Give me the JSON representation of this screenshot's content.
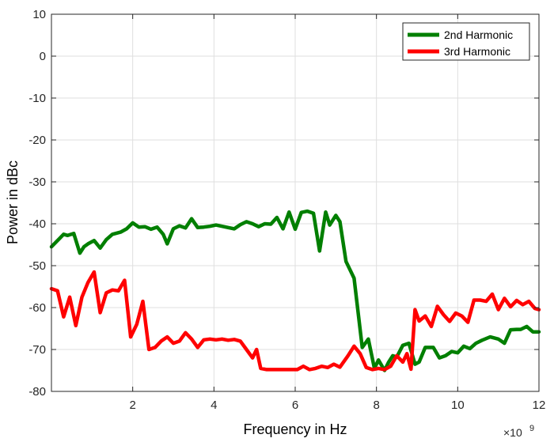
{
  "chart_data": {
    "type": "line",
    "xlabel": "Frequency in Hz",
    "ylabel": "Power in dBc",
    "x_exponent_label": "×10",
    "x_exponent_power": "9",
    "xlim": [
      0,
      12000000000
    ],
    "ylim": [
      -80,
      10
    ],
    "xticks": [
      2000000000,
      4000000000,
      6000000000,
      8000000000,
      10000000000,
      12000000000
    ],
    "xtick_labels": [
      "2",
      "4",
      "6",
      "8",
      "10",
      "12"
    ],
    "yticks": [
      10,
      0,
      -10,
      -20,
      -30,
      -40,
      -50,
      -60,
      -70,
      -80
    ],
    "ytick_labels": [
      "10",
      "0",
      "-10",
      "-20",
      "-30",
      "-40",
      "-50",
      "-60",
      "-70",
      "-80"
    ],
    "grid": true,
    "legend_position": "top-right",
    "series": [
      {
        "name": "2nd Harmonic",
        "color": "#007f00",
        "x": [
          0,
          200000000,
          300000000,
          400000000,
          550000000,
          700000000,
          800000000,
          900000000,
          1050000000,
          1200000000,
          1350000000,
          1500000000,
          1700000000,
          1850000000,
          2000000000,
          2150000000,
          2300000000,
          2450000000,
          2600000000,
          2750000000,
          2850000000,
          3000000000,
          3150000000,
          3300000000,
          3450000000,
          3600000000,
          3750000000,
          3900000000,
          4050000000,
          4200000000,
          4350000000,
          4500000000,
          4650000000,
          4800000000,
          4950000000,
          5100000000,
          5250000000,
          5400000000,
          5550000000,
          5700000000,
          5850000000,
          6000000000,
          6150000000,
          6300000000,
          6450000000,
          6600000000,
          6750000000,
          6850000000,
          7000000000,
          7100000000,
          7250000000,
          7450000000,
          7650000000,
          7800000000,
          7950000000,
          8050000000,
          8200000000,
          8300000000,
          8400000000,
          8500000000,
          8650000000,
          8800000000,
          8950000000,
          9050000000,
          9200000000,
          9400000000,
          9550000000,
          9700000000,
          9850000000,
          10000000000,
          10150000000,
          10300000000,
          10450000000,
          10600000000,
          10800000000,
          11000000000,
          11150000000,
          11300000000,
          11450000000,
          11550000000,
          11700000000,
          11850000000,
          12000000000
        ],
        "y": [
          -45.5,
          -43.5,
          -42.5,
          -42.8,
          -42.3,
          -47,
          -45.5,
          -44.8,
          -44,
          -45.8,
          -43.8,
          -42.5,
          -42,
          -41.2,
          -39.8,
          -40.8,
          -40.7,
          -41.3,
          -40.8,
          -42.5,
          -44.8,
          -41.2,
          -40.5,
          -41,
          -38.8,
          -40.9,
          -40.8,
          -40.6,
          -40.3,
          -40.6,
          -40.9,
          -41.2,
          -40.2,
          -39.5,
          -40,
          -40.7,
          -40,
          -40.1,
          -38.5,
          -41.2,
          -37.2,
          -41.3,
          -37.3,
          -37,
          -37.5,
          -46.5,
          -37.2,
          -40.3,
          -38,
          -39.5,
          -49,
          -53,
          -69.5,
          -67.5,
          -74.5,
          -72.5,
          -75,
          -73,
          -71.5,
          -71.8,
          -69,
          -68.5,
          -73.5,
          -73,
          -69.5,
          -69.5,
          -72,
          -71.5,
          -70.5,
          -70.8,
          -69.2,
          -69.8,
          -68.5,
          -67.8,
          -67,
          -67.5,
          -68.5,
          -65.3,
          -65.2,
          -65.2,
          -64.5,
          -65.8,
          -65.8
        ]
      },
      {
        "name": "3rd Harmonic",
        "color": "#ff0000",
        "x": [
          0,
          150000000,
          300000000,
          450000000,
          600000000,
          750000000,
          900000000,
          1050000000,
          1200000000,
          1350000000,
          1500000000,
          1650000000,
          1800000000,
          1950000000,
          2100000000,
          2250000000,
          2400000000,
          2550000000,
          2700000000,
          2850000000,
          3000000000,
          3150000000,
          3300000000,
          3450000000,
          3600000000,
          3750000000,
          3900000000,
          4050000000,
          4200000000,
          4350000000,
          4500000000,
          4650000000,
          4800000000,
          4950000000,
          5050000000,
          5150000000,
          5300000000,
          5450000000,
          5600000000,
          5750000000,
          5900000000,
          6050000000,
          6200000000,
          6350000000,
          6500000000,
          6650000000,
          6800000000,
          6950000000,
          7100000000,
          7300000000,
          7450000000,
          7600000000,
          7750000000,
          7900000000,
          8050000000,
          8200000000,
          8350000000,
          8500000000,
          8650000000,
          8750000000,
          8850000000,
          8950000000,
          9050000000,
          9200000000,
          9350000000,
          9500000000,
          9650000000,
          9800000000,
          9950000000,
          10100000000,
          10250000000,
          10400000000,
          10550000000,
          10700000000,
          10850000000,
          11000000000,
          11150000000,
          11300000000,
          11450000000,
          11600000000,
          11750000000,
          11900000000,
          12000000000
        ],
        "y": [
          -55.5,
          -56,
          -62.2,
          -57.5,
          -64.3,
          -57.5,
          -54,
          -51.5,
          -61.2,
          -56.5,
          -55.8,
          -56,
          -53.5,
          -67,
          -64,
          -58.5,
          -70,
          -69.5,
          -68,
          -67,
          -68.5,
          -68,
          -66,
          -67.5,
          -69.5,
          -67.7,
          -67.5,
          -67.7,
          -67.5,
          -67.8,
          -67.6,
          -68,
          -70,
          -72,
          -70,
          -74.5,
          -74.8,
          -74.8,
          -74.8,
          -74.8,
          -74.8,
          -74.8,
          -74,
          -74.8,
          -74.5,
          -74,
          -74.3,
          -73.5,
          -74.2,
          -71.5,
          -69.2,
          -71,
          -74.3,
          -74.8,
          -74.5,
          -74.8,
          -74,
          -71.5,
          -73,
          -71,
          -74.7,
          -60.5,
          -63.2,
          -62,
          -64.5,
          -59.7,
          -61.7,
          -63.3,
          -61.3,
          -62,
          -63.5,
          -58.2,
          -58.2,
          -58.5,
          -56.8,
          -60.5,
          -57.8,
          -59.8,
          -58.3,
          -59.3,
          -58.5,
          -60.2,
          -60.5
        ]
      }
    ]
  }
}
